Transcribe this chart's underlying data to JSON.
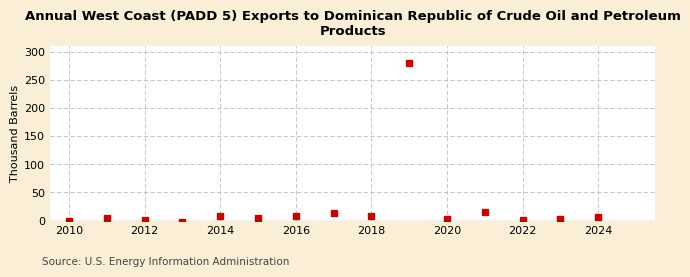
{
  "title": "Annual West Coast (PADD 5) Exports to Dominican Republic of Crude Oil and Petroleum\nProducts",
  "ylabel": "Thousand Barrels",
  "source": "Source: U.S. Energy Information Administration",
  "background_color": "#faefd6",
  "plot_background_color": "#ffffff",
  "years": [
    2010,
    2011,
    2012,
    2013,
    2014,
    2015,
    2016,
    2017,
    2018,
    2019,
    2020,
    2021,
    2022,
    2023,
    2024
  ],
  "values": [
    0,
    4,
    1,
    -2,
    9,
    5,
    9,
    13,
    9,
    280,
    3,
    15,
    2,
    3,
    6
  ],
  "marker_color": "#cc0000",
  "marker_size": 4,
  "ylim": [
    0,
    310
  ],
  "yticks": [
    0,
    50,
    100,
    150,
    200,
    250,
    300
  ],
  "xlim": [
    2009.5,
    2025.5
  ],
  "xticks": [
    2010,
    2012,
    2014,
    2016,
    2018,
    2020,
    2022,
    2024
  ],
  "grid_color": "#bbbbbb",
  "title_fontsize": 9.5,
  "axis_fontsize": 8,
  "ylabel_fontsize": 8,
  "source_fontsize": 7.5
}
